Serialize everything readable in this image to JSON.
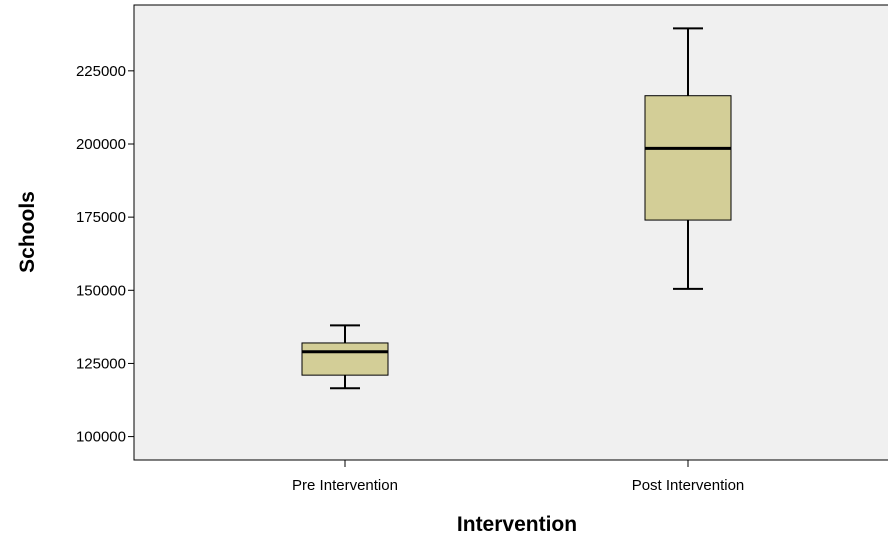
{
  "chart_data": {
    "type": "boxplot",
    "title": "",
    "xlabel": "Intervention",
    "ylabel": "Schools",
    "categories": [
      "Pre Intervention",
      "Post Intervention"
    ],
    "boxes": [
      {
        "category": "Pre Intervention",
        "min": 116500,
        "q1": 121000,
        "median": 129000,
        "q3": 132000,
        "max": 138000
      },
      {
        "category": "Post Intervention",
        "min": 150500,
        "q1": 174000,
        "median": 198500,
        "q3": 216500,
        "max": 239500
      }
    ],
    "ylim": [
      92000,
      247500
    ],
    "yticks": [
      100000,
      125000,
      150000,
      175000,
      200000,
      225000
    ],
    "ytick_labels": [
      "100000",
      "125000",
      "150000",
      "175000",
      "200000",
      "225000"
    ],
    "grid": false,
    "legend": "none",
    "colors": {
      "plot_background": "#f0f0f0",
      "box_fill": "#d3ce97",
      "line": "#000000"
    }
  }
}
